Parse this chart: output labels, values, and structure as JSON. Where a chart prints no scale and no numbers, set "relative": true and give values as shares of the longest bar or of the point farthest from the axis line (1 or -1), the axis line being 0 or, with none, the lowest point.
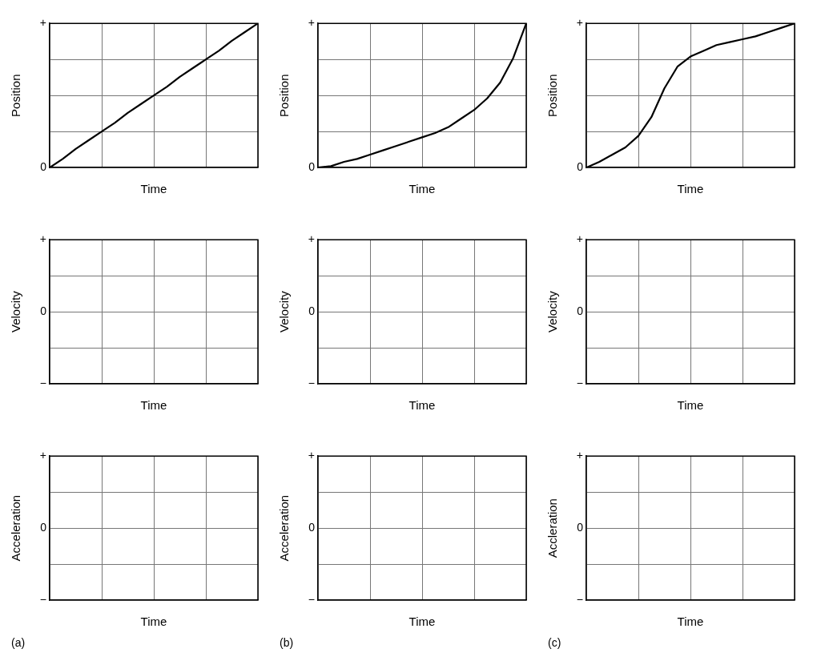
{
  "chart_data": [
    {
      "type": "line",
      "xlabel": "Time",
      "ylabel": "Position",
      "annotations": [
        "+",
        "0"
      ],
      "categories": [
        null,
        null,
        null,
        null,
        null,
        null,
        null,
        null,
        null,
        null,
        null,
        null,
        null,
        null,
        null,
        null,
        null
      ],
      "relative": true,
      "grid": true,
      "line_style": "solid",
      "marker": "none",
      "series": [
        {
          "color": "#000000",
          "values": [
            0,
            0.06,
            0.13,
            0.19,
            0.25,
            0.31,
            0.38,
            0.44,
            0.5,
            0.56,
            0.63,
            0.69,
            0.75,
            0.81,
            0.88,
            0.94,
            1
          ]
        }
      ]
    },
    {
      "type": "line",
      "xlabel": "Time",
      "ylabel": "Position",
      "annotations": [
        "+",
        "0"
      ],
      "categories": [
        null,
        null,
        null,
        null,
        null,
        null,
        null,
        null,
        null,
        null,
        null,
        null,
        null,
        null,
        null,
        null,
        null
      ],
      "relative": true,
      "grid": true,
      "line_style": "solid",
      "marker": "none",
      "series": [
        {
          "color": "#000000",
          "values": [
            0,
            0.01,
            0.04,
            0.06,
            0.09,
            0.12,
            0.15,
            0.18,
            0.21,
            0.24,
            0.28,
            0.34,
            0.4,
            0.48,
            0.59,
            0.76,
            1
          ]
        }
      ]
    },
    {
      "type": "line",
      "xlabel": "Time",
      "ylabel": "Position",
      "annotations": [
        "+",
        "0"
      ],
      "categories": [
        null,
        null,
        null,
        null,
        null,
        null,
        null,
        null,
        null,
        null,
        null,
        null,
        null,
        null,
        null,
        null,
        null
      ],
      "relative": true,
      "grid": true,
      "line_style": "solid",
      "marker": "none",
      "series": [
        {
          "color": "#000000",
          "values": [
            0,
            0.04,
            0.09,
            0.14,
            0.22,
            0.35,
            0.55,
            0.7,
            0.77,
            0.81,
            0.85,
            0.87,
            0.89,
            0.91,
            0.94,
            0.97,
            1
          ]
        }
      ]
    },
    {
      "type": "other",
      "xlabel": "Time",
      "ylabel": "Velocity",
      "annotations": [
        "+",
        "0",
        "−"
      ]
    },
    {
      "type": "other",
      "xlabel": "Time",
      "ylabel": "Velocity",
      "annotations": [
        "+",
        "0",
        "−"
      ]
    },
    {
      "type": "other",
      "xlabel": "Time",
      "ylabel": "Velocity",
      "annotations": [
        "+",
        "0",
        "−"
      ]
    },
    {
      "type": "other",
      "title": "(a)",
      "xlabel": "Time",
      "ylabel": "Acceleration",
      "annotations": [
        "+",
        "0",
        "−"
      ]
    },
    {
      "type": "other",
      "title": "(b)",
      "xlabel": "Time",
      "ylabel": "Acceleration",
      "annotations": [
        "+",
        "0",
        "−"
      ]
    },
    {
      "type": "other",
      "title": "(c)",
      "xlabel": "Time",
      "ylabel": "Accleration",
      "annotations": [
        "+",
        "0",
        "−"
      ]
    }
  ]
}
